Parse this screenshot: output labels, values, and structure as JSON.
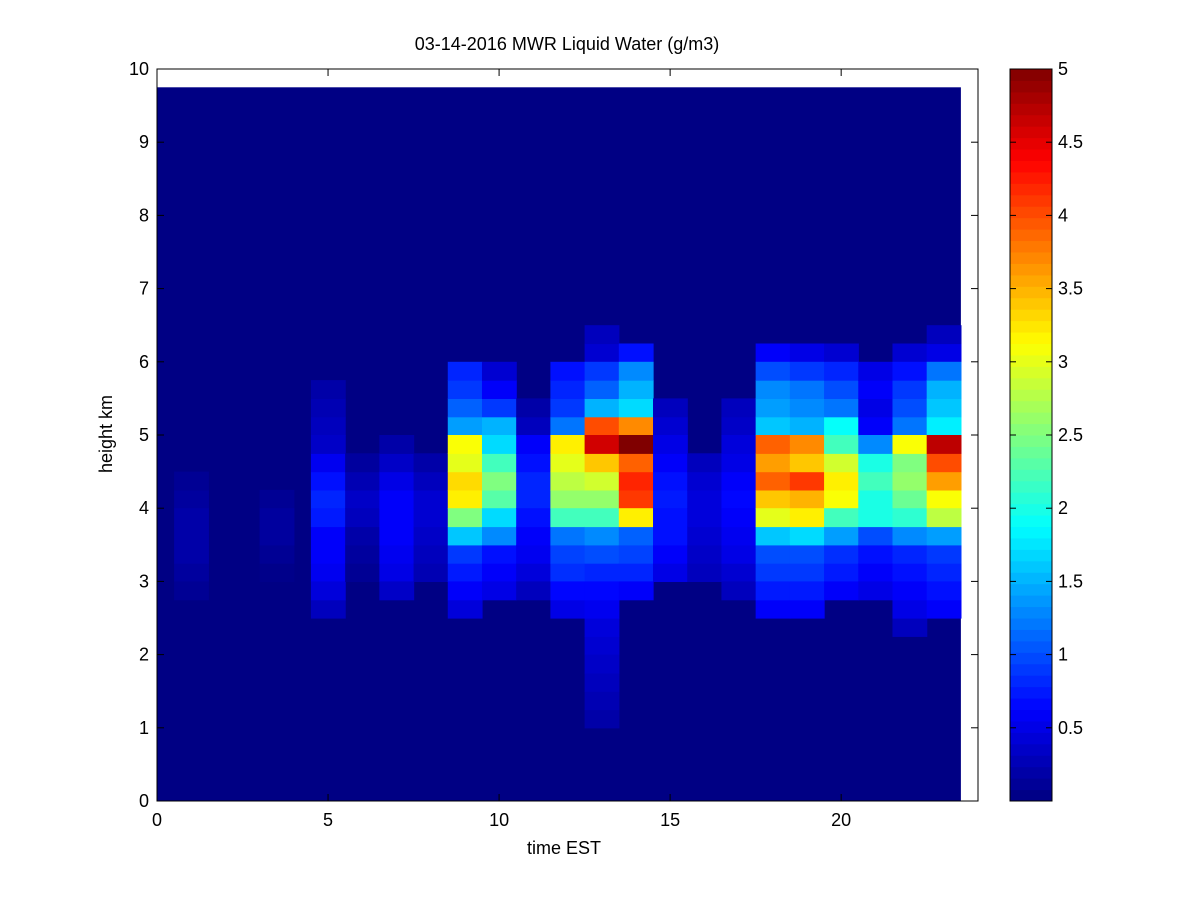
{
  "chart_data": {
    "type": "heatmap",
    "title": "03-14-2016 MWR Liquid Water (g/m3)",
    "xlabel": "time EST",
    "ylabel": "height km",
    "xlim": [
      0,
      24
    ],
    "ylim": [
      0,
      10
    ],
    "xticks": [
      0,
      5,
      10,
      15,
      20
    ],
    "yticks": [
      0,
      1,
      2,
      3,
      4,
      5,
      6,
      7,
      8,
      9,
      10
    ],
    "colorbar": {
      "colormap": "jet",
      "range": [
        0.0,
        5.0
      ],
      "ticks": [
        0.5,
        1,
        1.5,
        2,
        2.5,
        3,
        3.5,
        4,
        4.5,
        5
      ]
    },
    "data_extent": {
      "x": [
        0,
        23.5
      ],
      "y": [
        0,
        9.75
      ]
    },
    "time_bins_center": [
      1,
      2,
      3,
      4,
      5,
      6,
      7,
      8,
      9,
      10,
      11,
      12,
      13,
      14,
      15,
      16,
      17,
      18,
      19,
      20,
      21,
      22,
      23
    ],
    "height_bins_km": [
      0,
      0.25,
      0.5,
      0.75,
      1,
      1.25,
      1.5,
      1.75,
      2,
      2.25,
      2.5,
      2.75,
      3,
      3.25,
      3.5,
      3.75,
      4,
      4.25,
      4.5,
      4.75,
      5,
      5.25,
      5.5,
      5.75,
      6,
      6.25,
      6.5
    ],
    "background_value": 0.02,
    "columns": [
      {
        "time": 1,
        "profile": {
          "2.75": 0.1,
          "3": 0.15,
          "3.25": 0.2,
          "3.5": 0.2,
          "3.75": 0.2,
          "4": 0.15,
          "4.25": 0.1
        }
      },
      {
        "time": 3.5,
        "profile": {
          "3": 0.05,
          "3.25": 0.1,
          "3.5": 0.15,
          "3.75": 0.15,
          "4": 0.1
        }
      },
      {
        "time": 5,
        "profile": {
          "2.5": 0.3,
          "2.75": 0.45,
          "3": 0.55,
          "3.25": 0.6,
          "3.5": 0.6,
          "3.75": 0.75,
          "4": 0.8,
          "4.25": 0.7,
          "4.5": 0.55,
          "4.75": 0.35,
          "5": 0.3,
          "5.25": 0.25,
          "5.5": 0.2
        }
      },
      {
        "time": 6,
        "profile": {
          "3": 0.1,
          "3.25": 0.15,
          "3.5": 0.2,
          "3.75": 0.3,
          "4": 0.35,
          "4.25": 0.25,
          "4.5": 0.15
        }
      },
      {
        "time": 7,
        "profile": {
          "2.75": 0.35,
          "3": 0.5,
          "3.25": 0.55,
          "3.5": 0.6,
          "3.75": 0.6,
          "4": 0.6,
          "4.25": 0.5,
          "4.5": 0.35,
          "4.75": 0.2
        }
      },
      {
        "time": 8,
        "profile": {
          "3": 0.25,
          "3.25": 0.3,
          "3.5": 0.35,
          "3.75": 0.4,
          "4": 0.4,
          "4.25": 0.3,
          "4.5": 0.2
        }
      },
      {
        "time": 9,
        "profile": {
          "2.5": 0.45,
          "2.75": 0.6,
          "3": 0.75,
          "3.25": 0.9,
          "3.5": 1.6,
          "3.75": 2.5,
          "4": 3.2,
          "4.25": 3.3,
          "4.5": 3.0,
          "4.75": 3.1,
          "5": 1.4,
          "5.25": 1.1,
          "5.5": 0.9,
          "5.75": 0.8
        }
      },
      {
        "time": 10,
        "profile": {
          "2.75": 0.5,
          "3": 0.6,
          "3.25": 0.7,
          "3.5": 1.3,
          "3.75": 1.7,
          "4": 2.3,
          "4.25": 2.5,
          "4.5": 2.2,
          "4.75": 1.7,
          "5": 1.5,
          "5.25": 0.9,
          "5.5": 0.6,
          "5.75": 0.4
        }
      },
      {
        "time": 11,
        "profile": {
          "2.75": 0.3,
          "3": 0.45,
          "3.25": 0.55,
          "3.5": 0.6,
          "3.75": 0.7,
          "4": 0.8,
          "4.25": 0.8,
          "4.5": 0.7,
          "4.75": 0.6,
          "5": 0.3,
          "5.25": 0.2
        }
      },
      {
        "time": 12,
        "profile": {
          "2.5": 0.5,
          "2.75": 0.65,
          "3": 0.85,
          "3.25": 0.95,
          "3.5": 1.2,
          "3.75": 2.2,
          "4": 2.6,
          "4.25": 2.8,
          "4.5": 3.0,
          "4.75": 3.2,
          "5": 1.2,
          "5.25": 0.9,
          "5.5": 0.8,
          "5.75": 0.7
        }
      },
      {
        "time": 13,
        "profile": {
          "1": 0.2,
          "1.25": 0.25,
          "1.5": 0.3,
          "1.75": 0.35,
          "2": 0.4,
          "2.25": 0.45,
          "2.5": 0.55,
          "2.75": 0.65,
          "3": 0.8,
          "3.25": 1.0,
          "3.5": 1.3,
          "3.75": 2.2,
          "4": 2.6,
          "4.25": 2.9,
          "4.5": 3.4,
          "4.75": 4.6,
          "5": 4.0,
          "5.25": 1.5,
          "5.5": 1.1,
          "5.75": 0.9,
          "6": 0.4,
          "6.25": 0.3
        }
      },
      {
        "time": 14,
        "profile": {
          "2.75": 0.6,
          "3": 0.8,
          "3.25": 0.95,
          "3.5": 1.1,
          "3.75": 3.2,
          "4": 4.1,
          "4.25": 4.2,
          "4.5": 3.9,
          "4.75": 5.0,
          "5": 3.7,
          "5.25": 1.7,
          "5.5": 1.5,
          "5.75": 1.3,
          "6": 0.7
        }
      },
      {
        "time": 15,
        "profile": {
          "3": 0.5,
          "3.25": 0.6,
          "3.5": 0.7,
          "3.75": 0.7,
          "4": 0.75,
          "4.25": 0.7,
          "4.5": 0.6,
          "4.75": 0.5,
          "5": 0.4,
          "5.25": 0.3
        }
      },
      {
        "time": 16,
        "profile": {
          "3": 0.3,
          "3.25": 0.35,
          "3.5": 0.4,
          "3.75": 0.45,
          "4": 0.45,
          "4.25": 0.4,
          "4.5": 0.3
        }
      },
      {
        "time": 17,
        "profile": {
          "2.75": 0.3,
          "3": 0.4,
          "3.25": 0.5,
          "3.5": 0.55,
          "3.75": 0.6,
          "4": 0.65,
          "4.25": 0.6,
          "4.5": 0.5,
          "4.75": 0.45,
          "5": 0.35,
          "5.25": 0.3
        }
      },
      {
        "time": 18,
        "profile": {
          "2.5": 0.6,
          "2.75": 0.75,
          "3": 0.9,
          "3.25": 1.0,
          "3.5": 1.6,
          "3.75": 3.0,
          "4": 3.4,
          "4.25": 3.9,
          "4.5": 3.6,
          "4.75": 3.9,
          "5": 1.6,
          "5.25": 1.4,
          "5.5": 1.3,
          "5.75": 1.0,
          "6": 0.6
        }
      },
      {
        "time": 19,
        "profile": {
          "2.5": 0.6,
          "2.75": 0.75,
          "3": 0.9,
          "3.25": 1.0,
          "3.5": 1.7,
          "3.75": 3.2,
          "4": 3.5,
          "4.25": 4.1,
          "4.5": 3.4,
          "4.75": 3.7,
          "5": 1.5,
          "5.25": 1.3,
          "5.5": 1.2,
          "5.75": 0.9,
          "6": 0.5
        }
      },
      {
        "time": 20,
        "profile": {
          "2.75": 0.6,
          "3": 0.75,
          "3.25": 0.85,
          "3.5": 1.4,
          "3.75": 2.2,
          "4": 3.1,
          "4.25": 3.2,
          "4.5": 2.9,
          "4.75": 2.2,
          "5": 1.9,
          "5.25": 1.2,
          "5.5": 1.0,
          "5.75": 0.8,
          "6": 0.4
        }
      },
      {
        "time": 21,
        "profile": {
          "2.75": 0.5,
          "3": 0.6,
          "3.25": 0.7,
          "3.5": 1.0,
          "3.75": 2.0,
          "4": 2.0,
          "4.25": 2.2,
          "4.5": 2.0,
          "4.75": 1.3,
          "5": 0.6,
          "5.25": 0.5,
          "5.5": 0.6,
          "5.75": 0.5
        }
      },
      {
        "time": 22,
        "profile": {
          "2.25": 0.3,
          "2.5": 0.5,
          "2.75": 0.6,
          "3": 0.7,
          "3.25": 0.8,
          "3.5": 1.3,
          "3.75": 2.1,
          "4": 2.4,
          "4.25": 2.6,
          "4.5": 2.5,
          "4.75": 3.1,
          "5": 1.2,
          "5.25": 1.0,
          "5.5": 0.9,
          "5.75": 0.7,
          "6": 0.4
        }
      },
      {
        "time": 23,
        "profile": {
          "2.5": 0.6,
          "2.75": 0.7,
          "3": 0.8,
          "3.25": 0.9,
          "3.5": 1.4,
          "3.75": 2.8,
          "4": 3.1,
          "4.25": 3.6,
          "4.5": 4.0,
          "4.75": 4.7,
          "5": 1.8,
          "5.25": 1.6,
          "5.5": 1.5,
          "5.75": 1.2,
          "6": 0.5,
          "6.25": 0.3
        }
      }
    ]
  }
}
